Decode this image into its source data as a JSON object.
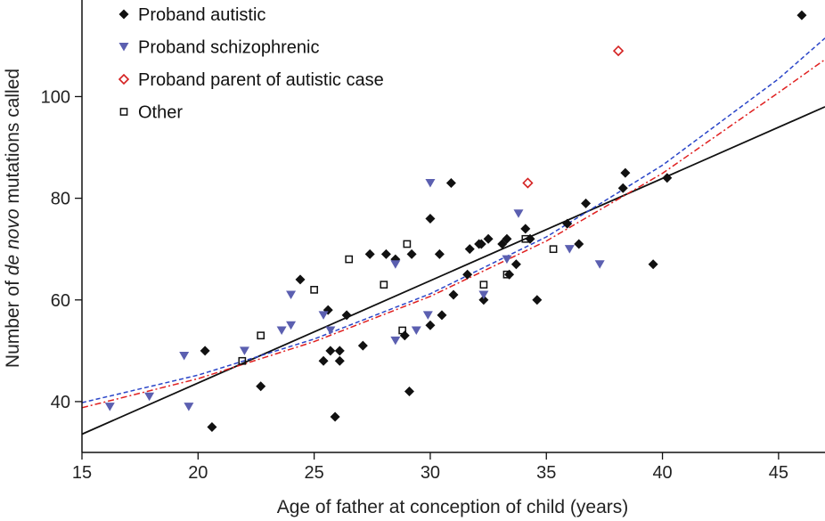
{
  "chart_data": {
    "type": "scatter",
    "title": "",
    "xlabel": "Age of father at conception of child (years)",
    "ylabel_parts": [
      "Number of ",
      "de novo",
      " mutations called"
    ],
    "xlim": [
      15,
      47
    ],
    "ylim": [
      30,
      119
    ],
    "x_ticks": [
      15,
      20,
      25,
      30,
      35,
      40,
      45
    ],
    "y_ticks": [
      40,
      60,
      80,
      100
    ],
    "grid": false,
    "legend_position": "top-left",
    "series": [
      {
        "name": "Proband autistic",
        "marker": "filled-diamond",
        "color": "#111111",
        "points": [
          [
            20.3,
            50
          ],
          [
            20.6,
            35
          ],
          [
            22.7,
            43
          ],
          [
            24.4,
            64
          ],
          [
            25.4,
            48
          ],
          [
            25.6,
            58
          ],
          [
            25.7,
            50
          ],
          [
            25.9,
            37
          ],
          [
            26.1,
            48
          ],
          [
            26.1,
            50
          ],
          [
            26.4,
            57
          ],
          [
            27.1,
            51
          ],
          [
            27.4,
            69
          ],
          [
            28.1,
            69
          ],
          [
            28.5,
            68
          ],
          [
            28.9,
            53
          ],
          [
            29.1,
            42
          ],
          [
            29.2,
            69
          ],
          [
            30.0,
            76
          ],
          [
            30.0,
            55
          ],
          [
            30.4,
            69
          ],
          [
            30.5,
            57
          ],
          [
            30.9,
            83
          ],
          [
            31.0,
            61
          ],
          [
            31.6,
            65
          ],
          [
            31.7,
            70
          ],
          [
            32.1,
            71
          ],
          [
            32.2,
            71
          ],
          [
            32.3,
            60
          ],
          [
            32.5,
            72
          ],
          [
            33.1,
            71
          ],
          [
            33.3,
            72
          ],
          [
            33.4,
            65
          ],
          [
            33.7,
            67
          ],
          [
            34.1,
            74
          ],
          [
            34.3,
            72
          ],
          [
            34.6,
            60
          ],
          [
            35.9,
            75
          ],
          [
            36.4,
            71
          ],
          [
            36.7,
            79
          ],
          [
            38.3,
            82
          ],
          [
            38.4,
            85
          ],
          [
            39.6,
            67
          ],
          [
            40.2,
            84
          ],
          [
            46.0,
            116
          ]
        ]
      },
      {
        "name": "Proband schizophrenic",
        "marker": "filled-triangle-down",
        "color": "#5b5fb0",
        "points": [
          [
            16.2,
            39
          ],
          [
            17.9,
            41
          ],
          [
            19.4,
            49
          ],
          [
            19.6,
            39
          ],
          [
            22.0,
            50
          ],
          [
            23.6,
            54
          ],
          [
            24.0,
            61
          ],
          [
            24.0,
            55
          ],
          [
            25.4,
            57
          ],
          [
            25.7,
            54
          ],
          [
            28.5,
            52
          ],
          [
            28.5,
            67
          ],
          [
            29.4,
            54
          ],
          [
            29.9,
            57
          ],
          [
            30.0,
            83
          ],
          [
            32.3,
            61
          ],
          [
            33.3,
            68
          ],
          [
            33.8,
            77
          ],
          [
            36.0,
            70
          ],
          [
            37.3,
            67
          ]
        ]
      },
      {
        "name": "Proband parent of autistic case",
        "marker": "open-diamond",
        "color": "#d42020",
        "points": [
          [
            34.2,
            83
          ],
          [
            38.1,
            109
          ]
        ]
      },
      {
        "name": "Other",
        "marker": "open-square",
        "color": "#111111",
        "points": [
          [
            21.9,
            48
          ],
          [
            22.7,
            53
          ],
          [
            25.0,
            62
          ],
          [
            26.5,
            68
          ],
          [
            28.0,
            63
          ],
          [
            28.8,
            54
          ],
          [
            29.0,
            71
          ],
          [
            32.3,
            63
          ],
          [
            33.3,
            65
          ],
          [
            34.1,
            72
          ],
          [
            35.3,
            70
          ]
        ]
      }
    ],
    "fits": [
      {
        "style": "solid",
        "color": "#111111",
        "type": "linear",
        "points": [
          [
            15,
            33.6
          ],
          [
            47,
            98.0
          ]
        ]
      },
      {
        "style": "dashed",
        "color": "#2a45c8",
        "type": "exponential",
        "points": [
          [
            15,
            39.8
          ],
          [
            20,
            45.2
          ],
          [
            25,
            52.3
          ],
          [
            30,
            61.2
          ],
          [
            35,
            72.4
          ],
          [
            40,
            86.5
          ],
          [
            45,
            103.5
          ],
          [
            47,
            111.5
          ]
        ]
      },
      {
        "style": "dash-dot",
        "color": "#e02020",
        "type": "exponential",
        "points": [
          [
            15,
            38.8
          ],
          [
            20,
            44.5
          ],
          [
            25,
            51.8
          ],
          [
            30,
            60.7
          ],
          [
            35,
            71.6
          ],
          [
            40,
            84.9
          ],
          [
            45,
            100.8
          ],
          [
            47,
            107.3
          ]
        ]
      }
    ]
  }
}
